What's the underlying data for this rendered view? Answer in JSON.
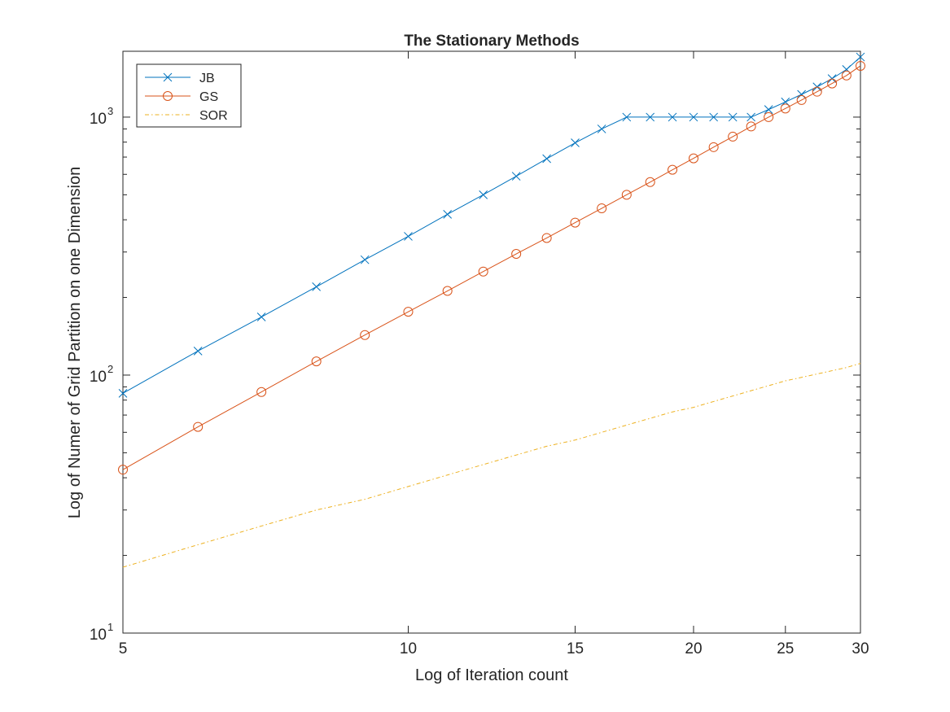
{
  "chart_data": {
    "type": "line",
    "title": "The Stationary Methods",
    "xlabel": "Log of Iteration count",
    "ylabel": "Log of Numer of Grid Partition on one Dimension",
    "xscale": "log",
    "yscale": "log",
    "xlim": [
      5,
      30
    ],
    "ylim": [
      10,
      1800
    ],
    "x_ticks": [
      5,
      10,
      15,
      20,
      25,
      30
    ],
    "x_tick_labels": [
      "5",
      "10",
      "15",
      "20",
      "25",
      "30"
    ],
    "y_ticks": [
      {
        "value": 10,
        "base": "10",
        "exp": "1"
      },
      {
        "value": 100,
        "base": "10",
        "exp": "2"
      },
      {
        "value": 1000,
        "base": "10",
        "exp": "3"
      }
    ],
    "grid": false,
    "box": true,
    "legend_position": "top-left",
    "colors": {
      "axis": "#262626",
      "jb": "#0072BD",
      "gs": "#D95319",
      "sor": "#EDB120"
    },
    "series": [
      {
        "name": "JB",
        "color": "#0072BD",
        "marker": "x",
        "line": "solid",
        "x": [
          5,
          6,
          7,
          8,
          9,
          10,
          11,
          12,
          13,
          14,
          15,
          16,
          17,
          18,
          19,
          20,
          21,
          22,
          23,
          24,
          25,
          26,
          27,
          28,
          29,
          30
        ],
        "y": [
          85,
          124,
          168,
          220,
          280,
          345,
          420,
          500,
          590,
          690,
          795,
          900,
          1000,
          1000,
          1000,
          1000,
          1000,
          1000,
          1000,
          1070,
          1145,
          1225,
          1310,
          1410,
          1530,
          1710
        ]
      },
      {
        "name": "GS",
        "color": "#D95319",
        "marker": "o",
        "line": "solid",
        "x": [
          5,
          6,
          7,
          8,
          9,
          10,
          11,
          12,
          13,
          14,
          15,
          16,
          17,
          18,
          19,
          20,
          21,
          22,
          23,
          24,
          25,
          26,
          27,
          28,
          29,
          30
        ],
        "y": [
          43,
          63,
          86,
          113,
          143,
          176,
          212,
          252,
          295,
          340,
          390,
          443,
          500,
          560,
          625,
          692,
          765,
          840,
          920,
          1000,
          1080,
          1165,
          1255,
          1350,
          1450,
          1580
        ]
      },
      {
        "name": "SOR",
        "color": "#EDB120",
        "marker": "none",
        "line": "dashdot",
        "x": [
          5,
          6,
          7,
          8,
          9,
          10,
          11,
          12,
          13,
          14,
          15,
          16,
          17,
          18,
          19,
          20,
          21,
          22,
          23,
          24,
          25,
          26,
          27,
          28,
          29,
          30
        ],
        "y": [
          18,
          22,
          26,
          30,
          33,
          37,
          41,
          45,
          49,
          53,
          56,
          60,
          64,
          68,
          72,
          75,
          79,
          83,
          87,
          91,
          95,
          98,
          101,
          104,
          107,
          111
        ]
      }
    ]
  }
}
